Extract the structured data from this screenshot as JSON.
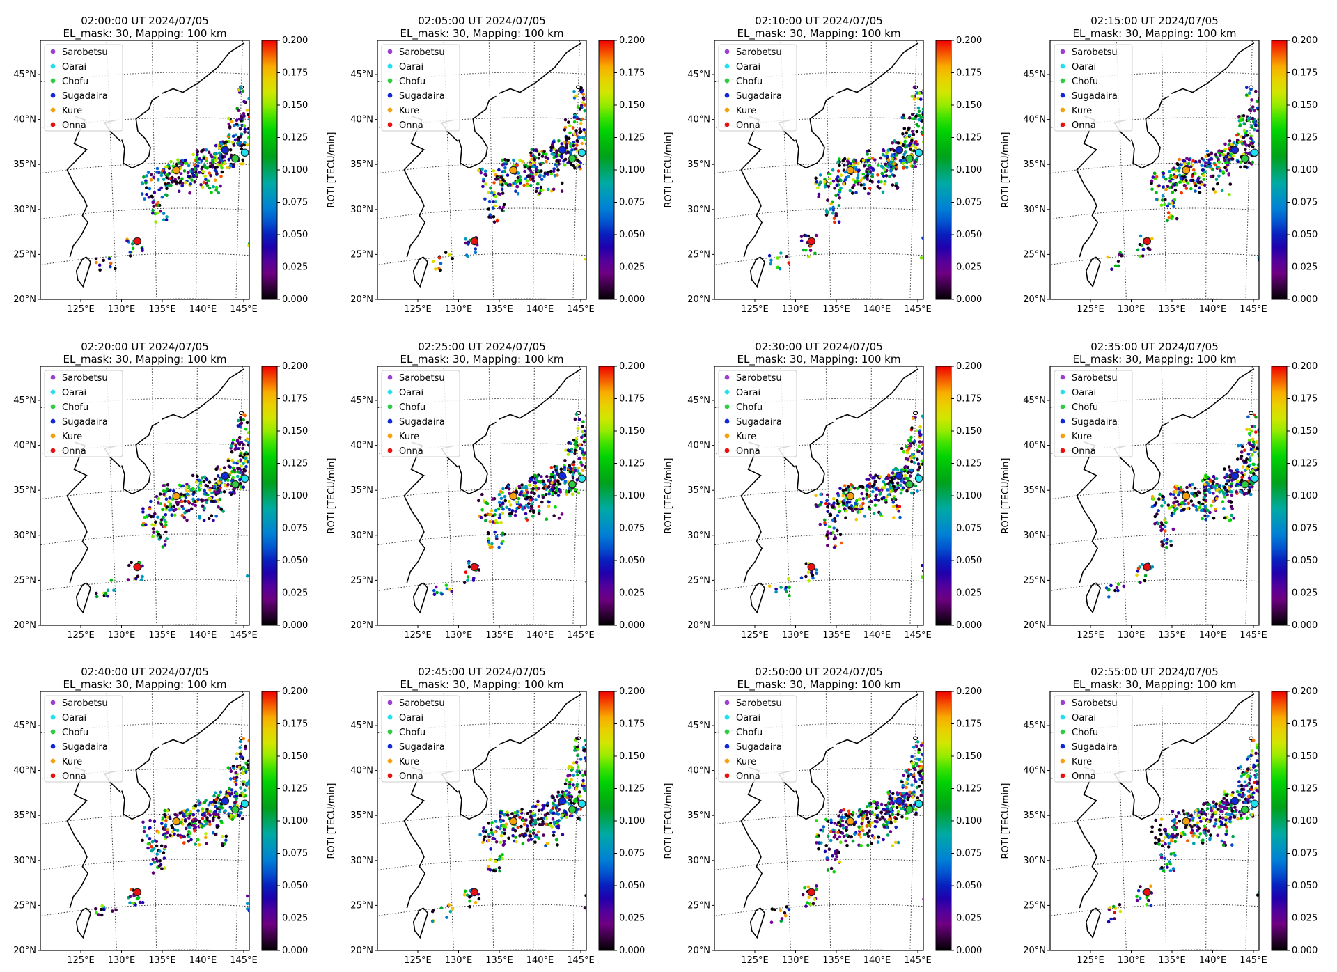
{
  "figure": {
    "title_line2": "EL_mask: 30, Mapping: 100 km",
    "colorbar_label": "ROTI [TECU/min]",
    "colorbar_ticks": [
      "0.000",
      "0.025",
      "0.050",
      "0.075",
      "0.100",
      "0.125",
      "0.150",
      "0.175",
      "0.200"
    ],
    "lon_ticks": [
      "125°E",
      "130°E",
      "135°E",
      "140°E",
      "145°E"
    ],
    "lat_ticks": [
      "20°N",
      "25°N",
      "30°N",
      "35°N",
      "40°N",
      "45°N"
    ],
    "legend": [
      {
        "name": "Sarobetsu",
        "color": "#9b3fd1"
      },
      {
        "name": "Oarai",
        "color": "#22e0f0"
      },
      {
        "name": "Chofu",
        "color": "#2ecc40"
      },
      {
        "name": "Sugadaira",
        "color": "#1228d6"
      },
      {
        "name": "Kure",
        "color": "#f5a10f"
      },
      {
        "name": "Onna",
        "color": "#e81010"
      }
    ]
  },
  "chart_data": [
    {
      "type": "scatter",
      "title": "02:00:00 UT 2024/07/05",
      "subtitle": "EL_mask: 30, Mapping: 100 km",
      "xlabel": "",
      "ylabel": "",
      "colorbar": {
        "label": "ROTI [TECU/min]",
        "range": [
          0.0,
          0.2
        ],
        "colormap": "nipy_spectral"
      },
      "xlim": [
        120,
        145
      ],
      "ylim": [
        20,
        48
      ]
    },
    {
      "type": "scatter",
      "title": "02:05:00 UT 2024/07/05",
      "subtitle": "EL_mask: 30, Mapping: 100 km",
      "xlabel": "",
      "ylabel": "",
      "colorbar": {
        "label": "ROTI [TECU/min]",
        "range": [
          0.0,
          0.2
        ],
        "colormap": "nipy_spectral"
      },
      "xlim": [
        120,
        145
      ],
      "ylim": [
        20,
        48
      ]
    },
    {
      "type": "scatter",
      "title": "02:10:00 UT 2024/07/05",
      "subtitle": "EL_mask: 30, Mapping: 100 km",
      "xlabel": "",
      "ylabel": "",
      "colorbar": {
        "label": "ROTI [TECU/min]",
        "range": [
          0.0,
          0.2
        ],
        "colormap": "nipy_spectral"
      },
      "xlim": [
        120,
        145
      ],
      "ylim": [
        20,
        48
      ]
    },
    {
      "type": "scatter",
      "title": "02:15:00 UT 2024/07/05",
      "subtitle": "EL_mask: 30, Mapping: 100 km",
      "xlabel": "",
      "ylabel": "",
      "colorbar": {
        "label": "ROTI [TECU/min]",
        "range": [
          0.0,
          0.2
        ],
        "colormap": "nipy_spectral"
      },
      "xlim": [
        120,
        145
      ],
      "ylim": [
        20,
        48
      ]
    },
    {
      "type": "scatter",
      "title": "02:20:00 UT 2024/07/05",
      "subtitle": "EL_mask: 30, Mapping: 100 km",
      "xlabel": "",
      "ylabel": "",
      "colorbar": {
        "label": "ROTI [TECU/min]",
        "range": [
          0.0,
          0.2
        ],
        "colormap": "nipy_spectral"
      },
      "xlim": [
        120,
        145
      ],
      "ylim": [
        20,
        48
      ]
    },
    {
      "type": "scatter",
      "title": "02:25:00 UT 2024/07/05",
      "subtitle": "EL_mask: 30, Mapping: 100 km",
      "xlabel": "",
      "ylabel": "",
      "colorbar": {
        "label": "ROTI [TECU/min]",
        "range": [
          0.0,
          0.2
        ],
        "colormap": "nipy_spectral"
      },
      "xlim": [
        120,
        145
      ],
      "ylim": [
        20,
        48
      ]
    },
    {
      "type": "scatter",
      "title": "02:30:00 UT 2024/07/05",
      "subtitle": "EL_mask: 30, Mapping: 100 km",
      "xlabel": "",
      "ylabel": "",
      "colorbar": {
        "label": "ROTI [TECU/min]",
        "range": [
          0.0,
          0.2
        ],
        "colormap": "nipy_spectral"
      },
      "xlim": [
        120,
        145
      ],
      "ylim": [
        20,
        48
      ]
    },
    {
      "type": "scatter",
      "title": "02:35:00 UT 2024/07/05",
      "subtitle": "EL_mask: 30, Mapping: 100 km",
      "xlabel": "",
      "ylabel": "",
      "colorbar": {
        "label": "ROTI [TECU/min]",
        "range": [
          0.0,
          0.2
        ],
        "colormap": "nipy_spectral"
      },
      "xlim": [
        120,
        145
      ],
      "ylim": [
        20,
        48
      ]
    },
    {
      "type": "scatter",
      "title": "02:40:00 UT 2024/07/05",
      "subtitle": "EL_mask: 30, Mapping: 100 km",
      "xlabel": "",
      "ylabel": "",
      "colorbar": {
        "label": "ROTI [TECU/min]",
        "range": [
          0.0,
          0.2
        ],
        "colormap": "nipy_spectral"
      },
      "xlim": [
        120,
        145
      ],
      "ylim": [
        20,
        48
      ]
    },
    {
      "type": "scatter",
      "title": "02:45:00 UT 2024/07/05",
      "subtitle": "EL_mask: 30, Mapping: 100 km",
      "xlabel": "",
      "ylabel": "",
      "colorbar": {
        "label": "ROTI [TECU/min]",
        "range": [
          0.0,
          0.2
        ],
        "colormap": "nipy_spectral"
      },
      "xlim": [
        120,
        145
      ],
      "ylim": [
        20,
        48
      ]
    },
    {
      "type": "scatter",
      "title": "02:50:00 UT 2024/07/05",
      "subtitle": "EL_mask: 30, Mapping: 100 km",
      "xlabel": "",
      "ylabel": "",
      "colorbar": {
        "label": "ROTI [TECU/min]",
        "range": [
          0.0,
          0.2
        ],
        "colormap": "nipy_spectral"
      },
      "xlim": [
        120,
        145
      ],
      "ylim": [
        20,
        48
      ]
    },
    {
      "type": "scatter",
      "title": "02:55:00 UT 2024/07/05",
      "subtitle": "EL_mask: 30, Mapping: 100 km",
      "xlabel": "",
      "ylabel": "",
      "colorbar": {
        "label": "ROTI [TECU/min]",
        "range": [
          0.0,
          0.2
        ],
        "colormap": "nipy_spectral"
      },
      "xlim": [
        120,
        145
      ],
      "ylim": [
        20,
        48
      ]
    }
  ]
}
